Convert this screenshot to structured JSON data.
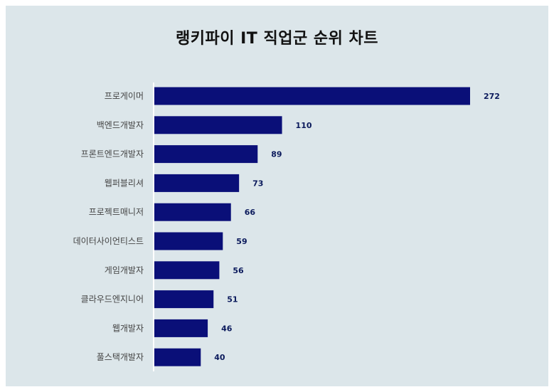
{
  "title": "랭키파이 IT 직업군 순위 차트",
  "colors": {
    "background": "#dce6ea",
    "bar": "#0a0f78",
    "axis": "#ffffff",
    "value_text": "#0b1a5c"
  },
  "chart_data": {
    "type": "bar",
    "orientation": "horizontal",
    "title": "랭키파이 IT 직업군 순위 차트",
    "categories": [
      "프로게이머",
      "백엔드개발자",
      "프론트엔드개발자",
      "웹퍼블리셔",
      "프로젝트매니저",
      "데이터사이언티스트",
      "게임개발자",
      "클라우드엔지니어",
      "웹개발자",
      "풀스택개발자"
    ],
    "values": [
      272,
      110,
      89,
      73,
      66,
      59,
      56,
      51,
      46,
      40
    ],
    "xlim": [
      0,
      272
    ],
    "grid": false,
    "legend": "none",
    "data_labels": true
  }
}
